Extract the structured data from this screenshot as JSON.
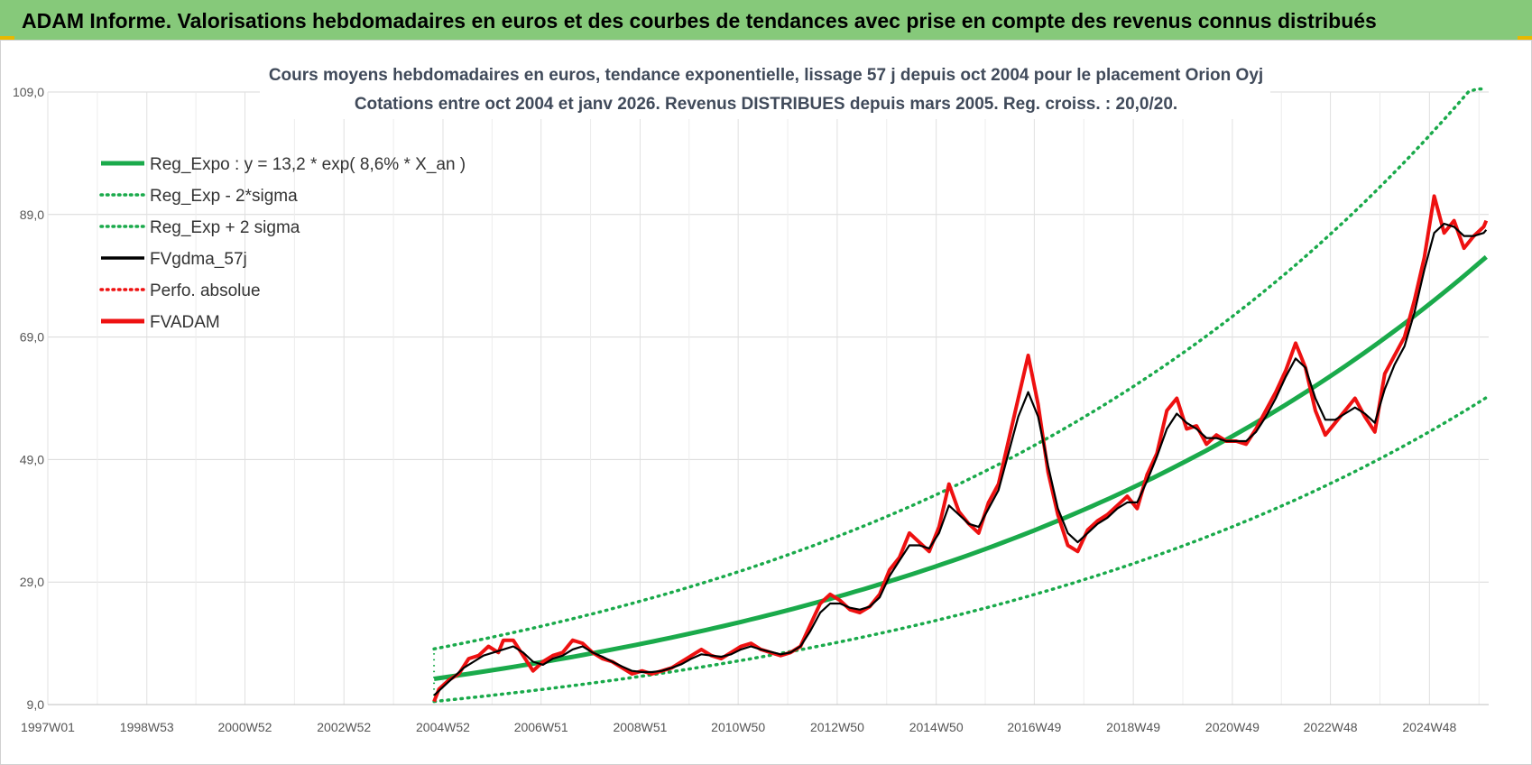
{
  "header": {
    "title": "ADAM Informe. Valorisations hebdomadaires en euros et des courbes de tendances avec prise en compte des revenus connus distribués"
  },
  "colors": {
    "header_bg": "#86c97a",
    "reg_green": "#1aaa4b",
    "series_black": "#000000",
    "series_red": "#ee1111"
  },
  "chart_data": {
    "type": "line",
    "title": "Cours moyens hebdomadaires en euros, tendance exponentielle, lissage 57 j depuis oct 2004 pour le placement Orion Oyj",
    "subtitle": "Cotations entre oct 2004 et janv 2026. Revenus DISTRIBUES depuis mars 2005. Reg. croiss. : 20,0/20.",
    "x_tick_labels": [
      "1997W01",
      "1998W53",
      "2000W52",
      "2002W52",
      "2004W52",
      "2006W51",
      "2008W51",
      "2010W50",
      "2012W50",
      "2014W50",
      "2016W49",
      "2018W49",
      "2020W49",
      "2022W48",
      "2024W48"
    ],
    "y_tick_labels": [
      "9,0",
      "29,0",
      "49,0",
      "69,0",
      "89,0",
      "109,0"
    ],
    "ylim": [
      9,
      109
    ],
    "xlim": [
      1997.0,
      2026.1
    ],
    "grid": true,
    "legend_position": "top-left",
    "legend": [
      {
        "key": "reg",
        "label": "Reg_Expo : y = 13,2 * exp( 8,6% *  X_an )",
        "color": "#1aaa4b",
        "style": "solid-thick"
      },
      {
        "key": "reg_low",
        "label": "Reg_Exp - 2*sigma",
        "color": "#1aaa4b",
        "style": "dotted"
      },
      {
        "key": "reg_high",
        "label": "Reg_Exp + 2 sigma",
        "color": "#1aaa4b",
        "style": "dotted"
      },
      {
        "key": "sma",
        "label": "FVgdma_57j",
        "color": "#000000",
        "style": "solid"
      },
      {
        "key": "perf",
        "label": "Perfo. absolue",
        "color": "#ee1111",
        "style": "dotted"
      },
      {
        "key": "fvadam",
        "label": "FVADAM",
        "color": "#ee1111",
        "style": "solid-thick"
      }
    ],
    "regression": {
      "a": 13.2,
      "rate": 0.086,
      "start": 2004.8,
      "end": 2026.05,
      "sigma_factor_low": 0.72,
      "sigma_factor_high": 1.37
    },
    "series": [
      {
        "name": "FVADAM",
        "x": [
          2004.8,
          2004.9,
          2005.1,
          2005.3,
          2005.5,
          2005.7,
          2005.9,
          2006.1,
          2006.2,
          2006.4,
          2006.6,
          2006.8,
          2007.0,
          2007.2,
          2007.4,
          2007.6,
          2007.8,
          2008.0,
          2008.2,
          2008.4,
          2008.6,
          2008.8,
          2009.0,
          2009.2,
          2009.4,
          2009.6,
          2009.8,
          2010.0,
          2010.2,
          2010.4,
          2010.6,
          2010.8,
          2011.0,
          2011.2,
          2011.4,
          2011.6,
          2011.8,
          2012.0,
          2012.2,
          2012.4,
          2012.6,
          2012.8,
          2013.0,
          2013.2,
          2013.4,
          2013.6,
          2013.8,
          2014.0,
          2014.2,
          2014.4,
          2014.6,
          2014.8,
          2015.0,
          2015.2,
          2015.4,
          2015.6,
          2015.8,
          2016.0,
          2016.2,
          2016.4,
          2016.6,
          2016.8,
          2017.0,
          2017.2,
          2017.4,
          2017.6,
          2017.8,
          2018.0,
          2018.2,
          2018.4,
          2018.6,
          2018.8,
          2019.0,
          2019.2,
          2019.4,
          2019.6,
          2019.8,
          2020.0,
          2020.2,
          2020.4,
          2020.6,
          2020.8,
          2021.0,
          2021.2,
          2021.4,
          2021.6,
          2021.8,
          2022.0,
          2022.2,
          2022.4,
          2022.6,
          2022.8,
          2023.0,
          2023.2,
          2023.4,
          2023.6,
          2023.8,
          2024.0,
          2024.2,
          2024.4,
          2024.6,
          2024.8,
          2025.0,
          2025.2,
          2025.4,
          2025.6,
          2025.8,
          2026.0,
          2026.05
        ],
        "values": [
          9.5,
          11.5,
          13.0,
          14.0,
          16.5,
          17.0,
          18.5,
          17.5,
          19.5,
          19.5,
          17.0,
          14.5,
          16.0,
          17.0,
          17.5,
          19.5,
          19.0,
          17.5,
          16.5,
          16.0,
          15.0,
          14.0,
          14.5,
          14.0,
          14.5,
          15.0,
          16.0,
          17.0,
          18.0,
          17.0,
          16.5,
          17.5,
          18.5,
          19.0,
          18.0,
          17.5,
          17.0,
          17.5,
          18.5,
          22.0,
          25.5,
          27.0,
          26.0,
          24.5,
          24.0,
          25.0,
          27.0,
          31.0,
          33.0,
          37.0,
          35.5,
          34.0,
          38.0,
          45.0,
          40.5,
          38.5,
          37.0,
          42.0,
          45.0,
          52.0,
          59.0,
          66.0,
          58.0,
          47.0,
          40.0,
          35.0,
          34.0,
          37.5,
          39.0,
          40.0,
          41.5,
          43.0,
          41.0,
          46.5,
          50.0,
          57.0,
          59.0,
          54.0,
          54.5,
          51.5,
          53.0,
          52.0,
          52.0,
          51.5,
          54.0,
          57.0,
          60.0,
          63.5,
          68.0,
          64.0,
          57.0,
          53.0,
          55.0,
          57.0,
          59.0,
          56.0,
          53.5,
          63.0,
          66.0,
          69.0,
          75.0,
          82.0,
          92.0,
          86.0,
          88.0,
          83.5,
          85.5,
          87.0,
          88.0
        ]
      },
      {
        "name": "FVgdma_57j",
        "x": [
          2004.8,
          2005.0,
          2005.2,
          2005.4,
          2005.6,
          2005.8,
          2006.0,
          2006.2,
          2006.4,
          2006.6,
          2006.8,
          2007.0,
          2007.2,
          2007.4,
          2007.6,
          2007.8,
          2008.0,
          2008.2,
          2008.4,
          2008.6,
          2008.8,
          2009.0,
          2009.2,
          2009.4,
          2009.6,
          2009.8,
          2010.0,
          2010.2,
          2010.4,
          2010.6,
          2010.8,
          2011.0,
          2011.2,
          2011.4,
          2011.6,
          2011.8,
          2012.0,
          2012.2,
          2012.4,
          2012.6,
          2012.8,
          2013.0,
          2013.2,
          2013.4,
          2013.6,
          2013.8,
          2014.0,
          2014.2,
          2014.4,
          2014.6,
          2014.8,
          2015.0,
          2015.2,
          2015.4,
          2015.6,
          2015.8,
          2016.0,
          2016.2,
          2016.4,
          2016.6,
          2016.8,
          2017.0,
          2017.2,
          2017.4,
          2017.6,
          2017.8,
          2018.0,
          2018.2,
          2018.4,
          2018.6,
          2018.8,
          2019.0,
          2019.2,
          2019.4,
          2019.6,
          2019.8,
          2020.0,
          2020.2,
          2020.4,
          2020.6,
          2020.8,
          2021.0,
          2021.2,
          2021.4,
          2021.6,
          2021.8,
          2022.0,
          2022.2,
          2022.4,
          2022.6,
          2022.8,
          2023.0,
          2023.2,
          2023.4,
          2023.6,
          2023.8,
          2024.0,
          2024.2,
          2024.4,
          2024.6,
          2024.8,
          2025.0,
          2025.2,
          2025.4,
          2025.6,
          2025.8,
          2026.0,
          2026.05
        ],
        "values": [
          10.5,
          12.0,
          13.5,
          15.0,
          16.0,
          17.0,
          17.5,
          18.0,
          18.5,
          17.5,
          16.0,
          15.5,
          16.5,
          17.0,
          18.0,
          18.5,
          17.5,
          16.8,
          16.0,
          15.2,
          14.5,
          14.3,
          14.3,
          14.5,
          15.0,
          15.6,
          16.5,
          17.2,
          17.0,
          16.8,
          17.2,
          18.0,
          18.5,
          18.0,
          17.6,
          17.2,
          17.5,
          18.5,
          21.0,
          24.0,
          25.5,
          25.5,
          24.8,
          24.5,
          25.0,
          26.5,
          30.0,
          32.5,
          35.0,
          35.0,
          34.5,
          37.0,
          41.5,
          40.0,
          38.5,
          38.0,
          41.0,
          44.0,
          50.0,
          56.0,
          60.0,
          56.0,
          48.0,
          41.0,
          37.0,
          35.5,
          37.0,
          38.5,
          39.5,
          41.0,
          42.0,
          42.0,
          45.5,
          49.5,
          54.0,
          56.5,
          55.0,
          54.0,
          52.5,
          52.5,
          52.0,
          52.0,
          52.0,
          53.5,
          56.0,
          59.0,
          62.5,
          65.5,
          64.0,
          59.0,
          55.5,
          55.5,
          56.5,
          57.5,
          56.5,
          55.0,
          60.5,
          64.5,
          67.5,
          73.0,
          80.0,
          86.0,
          87.5,
          87.0,
          85.5,
          85.5,
          86.0,
          86.5
        ]
      }
    ]
  }
}
